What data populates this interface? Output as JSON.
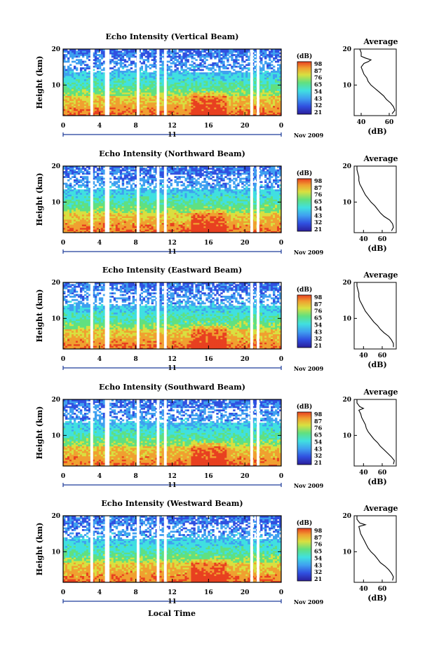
{
  "x_axis_label": "Local Time",
  "date_label": "Nov 2009",
  "day_label": "11",
  "colorbar_unit": "(dB)",
  "colorbar_ticks": [
    "98",
    "87",
    "76",
    "65",
    "54",
    "43",
    "32",
    "21"
  ],
  "colors": {
    "scale": [
      "#2b1f9c",
      "#3050e0",
      "#3fa0f0",
      "#40e0e0",
      "#60e080",
      "#d8e040",
      "#f0a030",
      "#e84020"
    ],
    "line": "#000000",
    "axis_day": "#1e3c9a"
  },
  "chart_data": [
    {
      "type": "heatmap",
      "title": "Echo Intensity (Vertical Beam)",
      "ylabel": "Height (km)",
      "xlabel": "Local Time",
      "x_ticks": [
        "0",
        "4",
        "8",
        "12",
        "16",
        "20",
        "0"
      ],
      "xlim": [
        0,
        24
      ],
      "y_ticks": [
        "10",
        "20"
      ],
      "ylim": [
        1.5,
        20
      ],
      "data_gaps_hours": [
        [
          3.0,
          3.3
        ],
        [
          4.6,
          5.1
        ],
        [
          8.1,
          8.4
        ],
        [
          10.3,
          10.6
        ],
        [
          11.1,
          11.4
        ],
        [
          20.6,
          20.9
        ],
        [
          21.3,
          21.6
        ]
      ],
      "colorbar": {
        "unit": "(dB)",
        "ticks": [
          98,
          87,
          76,
          65,
          54,
          43,
          32,
          21
        ]
      },
      "average_profile": {
        "title": "Average",
        "xlabel": "(dB)",
        "x_ticks": [
          "40",
          "60"
        ],
        "xlim": [
          35,
          65
        ],
        "y_ticks": [
          "10",
          "20"
        ],
        "ylim": [
          1.5,
          20
        ],
        "height_km": [
          2,
          3,
          4,
          5,
          6,
          7,
          8,
          9,
          10,
          11,
          12,
          13,
          14,
          15,
          16,
          16.5,
          17,
          17.5,
          18,
          19,
          20
        ],
        "db": [
          62,
          64,
          63,
          61,
          58,
          56,
          53,
          50,
          47,
          45,
          44,
          42,
          41,
          40,
          42,
          45,
          47,
          43,
          40,
          40,
          39
        ]
      }
    },
    {
      "type": "heatmap",
      "title": "Echo Intensity (Northward Beam)",
      "ylabel": "Height (km)",
      "xlabel": "Local Time",
      "x_ticks": [
        "0",
        "4",
        "8",
        "12",
        "16",
        "20",
        "0"
      ],
      "xlim": [
        0,
        24
      ],
      "y_ticks": [
        "10",
        "20"
      ],
      "ylim": [
        1.5,
        20
      ],
      "data_gaps_hours": [
        [
          3.0,
          3.3
        ],
        [
          4.6,
          5.1
        ],
        [
          8.1,
          8.4
        ],
        [
          10.3,
          10.6
        ],
        [
          11.1,
          11.4
        ],
        [
          20.6,
          20.9
        ],
        [
          21.3,
          21.6
        ]
      ],
      "colorbar": {
        "unit": "(dB)",
        "ticks": [
          98,
          87,
          76,
          65,
          54,
          43,
          32,
          21
        ]
      },
      "average_profile": {
        "title": "Average",
        "xlabel": "(dB)",
        "x_ticks": [
          "40",
          "60"
        ],
        "xlim": [
          30,
          75
        ],
        "y_ticks": [
          "10",
          "20"
        ],
        "ylim": [
          1.5,
          20
        ],
        "height_km": [
          2,
          3,
          4,
          5,
          6,
          7,
          8,
          9,
          10,
          11,
          12,
          13,
          14,
          15,
          16,
          17,
          18,
          19,
          20
        ],
        "db": [
          70,
          72,
          71,
          68,
          62,
          58,
          55,
          52,
          48,
          45,
          42,
          40,
          38,
          36,
          35,
          35,
          34,
          33,
          33
        ]
      }
    },
    {
      "type": "heatmap",
      "title": "Echo Intensity (Eastward Beam)",
      "ylabel": "Height (km)",
      "xlabel": "Local Time",
      "x_ticks": [
        "0",
        "4",
        "8",
        "12",
        "16",
        "20",
        "0"
      ],
      "xlim": [
        0,
        24
      ],
      "y_ticks": [
        "10",
        "20"
      ],
      "ylim": [
        1.5,
        20
      ],
      "data_gaps_hours": [
        [
          3.0,
          3.3
        ],
        [
          4.6,
          5.1
        ],
        [
          8.1,
          8.4
        ],
        [
          10.3,
          10.6
        ],
        [
          11.1,
          11.4
        ],
        [
          20.6,
          20.9
        ],
        [
          21.3,
          21.6
        ]
      ],
      "colorbar": {
        "unit": "(dB)",
        "ticks": [
          98,
          87,
          76,
          65,
          54,
          43,
          32,
          21
        ]
      },
      "average_profile": {
        "title": "Average",
        "xlabel": "(dB)",
        "x_ticks": [
          "40",
          "60"
        ],
        "xlim": [
          30,
          75
        ],
        "y_ticks": [
          "10",
          "20"
        ],
        "ylim": [
          1.5,
          20
        ],
        "height_km": [
          2,
          3,
          4,
          5,
          6,
          7,
          8,
          9,
          10,
          11,
          12,
          13,
          14,
          15,
          16,
          17,
          18,
          19,
          20
        ],
        "db": [
          72,
          72,
          70,
          67,
          62,
          58,
          55,
          51,
          48,
          45,
          42,
          40,
          38,
          36,
          35,
          35,
          34,
          33,
          33
        ]
      }
    },
    {
      "type": "heatmap",
      "title": "Echo Intensity (Southward Beam)",
      "ylabel": "Height (km)",
      "xlabel": "Local Time",
      "x_ticks": [
        "0",
        "4",
        "8",
        "12",
        "16",
        "20",
        "0"
      ],
      "xlim": [
        0,
        24
      ],
      "y_ticks": [
        "10",
        "20"
      ],
      "ylim": [
        1.5,
        20
      ],
      "data_gaps_hours": [
        [
          3.0,
          3.3
        ],
        [
          4.6,
          5.1
        ],
        [
          8.1,
          8.4
        ],
        [
          10.3,
          10.6
        ],
        [
          11.1,
          11.4
        ],
        [
          20.6,
          20.9
        ],
        [
          21.3,
          21.6
        ]
      ],
      "colorbar": {
        "unit": "(dB)",
        "ticks": [
          98,
          87,
          76,
          65,
          54,
          43,
          32,
          21
        ]
      },
      "average_profile": {
        "title": "Average",
        "xlabel": "(dB)",
        "x_ticks": [
          "40",
          "60"
        ],
        "xlim": [
          30,
          75
        ],
        "y_ticks": [
          "10",
          "20"
        ],
        "ylim": [
          1.5,
          20
        ],
        "height_km": [
          2,
          3,
          4,
          5,
          6,
          7,
          8,
          9,
          10,
          11,
          12,
          13,
          14,
          15,
          16,
          17,
          17.5,
          18,
          19,
          20
        ],
        "db": [
          72,
          73,
          70,
          66,
          62,
          58,
          55,
          51,
          48,
          45,
          43,
          42,
          40,
          38,
          37,
          35,
          40,
          36,
          33,
          33
        ]
      }
    },
    {
      "type": "heatmap",
      "title": "Echo Intensity (Westward Beam)",
      "ylabel": "Height (km)",
      "xlabel": "Local Time",
      "x_ticks": [
        "0",
        "4",
        "8",
        "12",
        "16",
        "20",
        "0"
      ],
      "xlim": [
        0,
        24
      ],
      "y_ticks": [
        "10",
        "20"
      ],
      "ylim": [
        1.5,
        20
      ],
      "data_gaps_hours": [
        [
          3.0,
          3.3
        ],
        [
          4.6,
          5.1
        ],
        [
          8.1,
          8.4
        ],
        [
          10.3,
          10.6
        ],
        [
          11.1,
          11.4
        ],
        [
          20.6,
          20.9
        ],
        [
          21.3,
          21.6
        ]
      ],
      "colorbar": {
        "unit": "(dB)",
        "ticks": [
          98,
          87,
          76,
          65,
          54,
          43,
          32,
          21
        ]
      },
      "average_profile": {
        "title": "Average",
        "xlabel": "(dB)",
        "x_ticks": [
          "40",
          "60"
        ],
        "xlim": [
          30,
          75
        ],
        "y_ticks": [
          "10",
          "20"
        ],
        "ylim": [
          1.5,
          20
        ],
        "height_km": [
          2,
          3,
          4,
          5,
          6,
          7,
          8,
          9,
          10,
          11,
          12,
          13,
          14,
          15,
          16,
          17,
          17.5,
          18,
          19,
          20
        ],
        "db": [
          71,
          72,
          70,
          67,
          63,
          58,
          55,
          52,
          48,
          45,
          43,
          41,
          39,
          37,
          36,
          35,
          42,
          36,
          33,
          33
        ]
      }
    }
  ]
}
